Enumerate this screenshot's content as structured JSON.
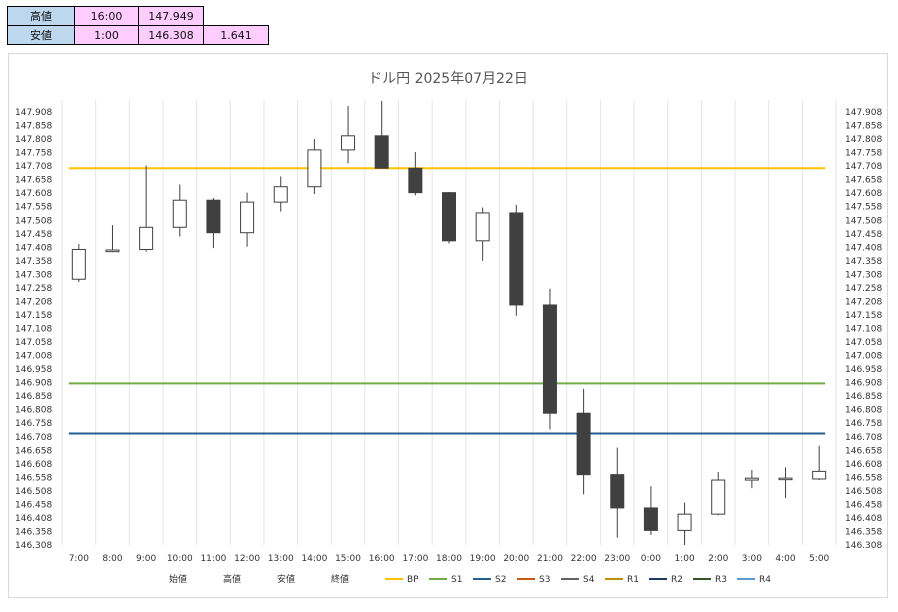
{
  "summary": {
    "high_label": "高値",
    "high_time": "16:00",
    "high_value": "147.949",
    "low_label": "安値",
    "low_time": "1:00",
    "low_value": "146.308",
    "range_value": "1.641"
  },
  "chart_data": {
    "type": "candlestick",
    "title": "ドル円  2025年07月22日",
    "ylim": [
      146.308,
      147.949
    ],
    "y_ticks": [
      "147.908",
      "147.858",
      "147.808",
      "147.758",
      "147.708",
      "147.658",
      "147.608",
      "147.558",
      "147.508",
      "147.458",
      "147.408",
      "147.358",
      "147.308",
      "147.258",
      "147.208",
      "147.158",
      "147.108",
      "147.058",
      "147.008",
      "146.958",
      "146.908",
      "146.858",
      "146.808",
      "146.758",
      "146.708",
      "146.658",
      "146.608",
      "146.558",
      "146.508",
      "146.458",
      "146.408",
      "146.358",
      "146.308"
    ],
    "grid": "vertical",
    "categories": [
      "7:00",
      "8:00",
      "9:00",
      "10:00",
      "11:00",
      "12:00",
      "13:00",
      "14:00",
      "15:00",
      "16:00",
      "17:00",
      "18:00",
      "19:00",
      "20:00",
      "21:00",
      "22:00",
      "23:00",
      "0:00",
      "1:00",
      "2:00",
      "3:00",
      "4:00",
      "5:00"
    ],
    "candles": [
      {
        "open": 147.29,
        "high": 147.42,
        "low": 147.28,
        "close": 147.4
      },
      {
        "open": 147.392,
        "high": 147.49,
        "low": 147.39,
        "close": 147.398
      },
      {
        "open": 147.4,
        "high": 147.71,
        "low": 147.392,
        "close": 147.482
      },
      {
        "open": 147.482,
        "high": 147.64,
        "low": 147.448,
        "close": 147.582
      },
      {
        "open": 147.582,
        "high": 147.59,
        "low": 147.405,
        "close": 147.462
      },
      {
        "open": 147.462,
        "high": 147.61,
        "low": 147.41,
        "close": 147.575
      },
      {
        "open": 147.575,
        "high": 147.67,
        "low": 147.54,
        "close": 147.632
      },
      {
        "open": 147.632,
        "high": 147.808,
        "low": 147.605,
        "close": 147.768
      },
      {
        "open": 147.768,
        "high": 147.93,
        "low": 147.718,
        "close": 147.82
      },
      {
        "open": 147.82,
        "high": 147.949,
        "low": 147.7,
        "close": 147.7
      },
      {
        "open": 147.7,
        "high": 147.76,
        "low": 147.6,
        "close": 147.61
      },
      {
        "open": 147.61,
        "high": 147.612,
        "low": 147.422,
        "close": 147.432
      },
      {
        "open": 147.432,
        "high": 147.555,
        "low": 147.358,
        "close": 147.535
      },
      {
        "open": 147.535,
        "high": 147.565,
        "low": 147.155,
        "close": 147.195
      },
      {
        "open": 147.195,
        "high": 147.255,
        "low": 146.735,
        "close": 146.795
      },
      {
        "open": 146.795,
        "high": 146.885,
        "low": 146.495,
        "close": 146.568
      },
      {
        "open": 146.568,
        "high": 146.668,
        "low": 146.335,
        "close": 146.445
      },
      {
        "open": 146.445,
        "high": 146.525,
        "low": 146.345,
        "close": 146.362
      },
      {
        "open": 146.362,
        "high": 146.465,
        "low": 146.308,
        "close": 146.422
      },
      {
        "open": 146.422,
        "high": 146.578,
        "low": 146.418,
        "close": 146.548
      },
      {
        "open": 146.548,
        "high": 146.585,
        "low": 146.518,
        "close": 146.555
      },
      {
        "open": 146.552,
        "high": 146.595,
        "low": 146.482,
        "close": 146.555
      },
      {
        "open": 146.552,
        "high": 146.675,
        "low": 146.548,
        "close": 146.58
      }
    ],
    "series": [
      {
        "name": "BP",
        "value": 147.7,
        "color": "#ffc000"
      },
      {
        "name": "S1",
        "value": 146.905,
        "color": "#70ad47"
      },
      {
        "name": "S2",
        "value": 146.72,
        "color": "#255e91"
      }
    ],
    "legend": [
      {
        "name": "始値",
        "color": null
      },
      {
        "name": "高値",
        "color": null
      },
      {
        "name": "安値",
        "color": null
      },
      {
        "name": "終値",
        "color": null
      },
      {
        "name": "BP",
        "color": "#ffc000"
      },
      {
        "name": "S1",
        "color": "#70ad47"
      },
      {
        "name": "S2",
        "color": "#255e91"
      },
      {
        "name": "S3",
        "color": "#c55a11"
      },
      {
        "name": "S4",
        "color": "#636363"
      },
      {
        "name": "R1",
        "color": "#bf8f00"
      },
      {
        "name": "R2",
        "color": "#203864"
      },
      {
        "name": "R3",
        "color": "#375623"
      },
      {
        "name": "R4",
        "color": "#5b9bd5"
      }
    ],
    "up_color": "#ffffff",
    "down_color": "#404040",
    "legend_position": "bottom"
  }
}
